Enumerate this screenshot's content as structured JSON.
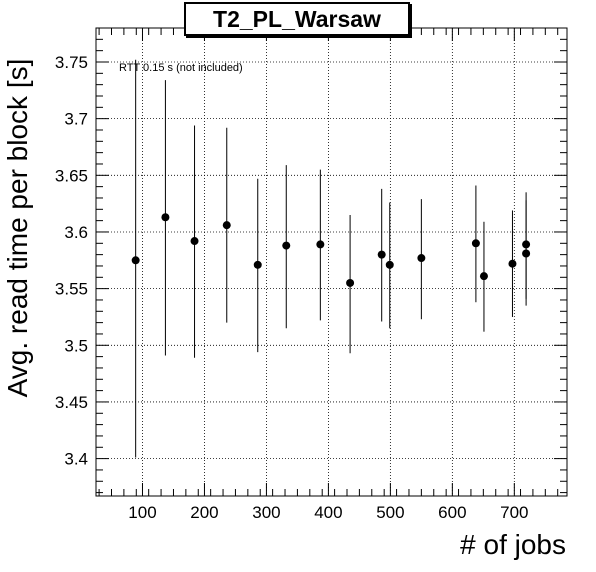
{
  "chart_data": {
    "type": "scatter",
    "title": "T2_PL_Warsaw",
    "xlabel": "# of jobs",
    "ylabel": "Avg. read time per block [s]",
    "annotation": "RTT 0.15 s (not included)",
    "xlim": [
      25,
      785
    ],
    "ylim": [
      3.367,
      3.78
    ],
    "xticks": [
      100,
      200,
      300,
      400,
      500,
      600,
      700
    ],
    "yticks": [
      3.4,
      3.45,
      3.5,
      3.55,
      3.6,
      3.65,
      3.7,
      3.75
    ],
    "ytick_labels": [
      "3.4",
      "3.45",
      "3.5",
      "3.55",
      "3.6",
      "3.65",
      "3.7",
      "3.75"
    ],
    "grid": true,
    "points": [
      {
        "x": 89,
        "y": 3.575,
        "ylow": 3.401,
        "yhigh": 3.752
      },
      {
        "x": 137,
        "y": 3.613,
        "ylow": 3.491,
        "yhigh": 3.734
      },
      {
        "x": 184,
        "y": 3.592,
        "ylow": 3.489,
        "yhigh": 3.694
      },
      {
        "x": 236,
        "y": 3.606,
        "ylow": 3.52,
        "yhigh": 3.692
      },
      {
        "x": 286,
        "y": 3.571,
        "ylow": 3.494,
        "yhigh": 3.647
      },
      {
        "x": 332,
        "y": 3.588,
        "ylow": 3.515,
        "yhigh": 3.659
      },
      {
        "x": 387,
        "y": 3.589,
        "ylow": 3.522,
        "yhigh": 3.655
      },
      {
        "x": 435,
        "y": 3.555,
        "ylow": 3.493,
        "yhigh": 3.615
      },
      {
        "x": 486,
        "y": 3.58,
        "ylow": 3.521,
        "yhigh": 3.638
      },
      {
        "x": 499,
        "y": 3.571,
        "ylow": 3.515,
        "yhigh": 3.626
      },
      {
        "x": 550,
        "y": 3.577,
        "ylow": 3.523,
        "yhigh": 3.629
      },
      {
        "x": 638,
        "y": 3.59,
        "ylow": 3.538,
        "yhigh": 3.641
      },
      {
        "x": 651,
        "y": 3.561,
        "ylow": 3.512,
        "yhigh": 3.609
      },
      {
        "x": 697,
        "y": 3.572,
        "ylow": 3.525,
        "yhigh": 3.619
      },
      {
        "x": 719,
        "y": 3.589,
        "ylow": 3.541,
        "yhigh": 3.635
      },
      {
        "x": 719,
        "y": 3.581,
        "ylow": 3.535,
        "yhigh": 3.628
      }
    ]
  }
}
